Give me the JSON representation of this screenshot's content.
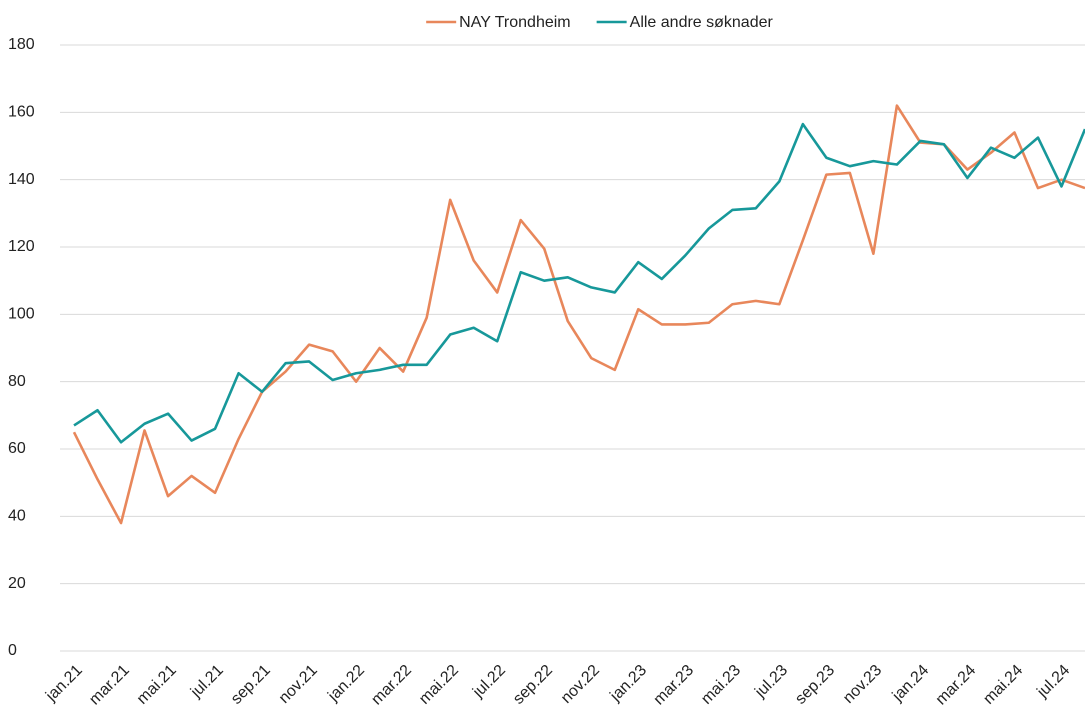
{
  "chart_data": {
    "type": "line",
    "categories": [
      "jan.21",
      null,
      "mar.21",
      null,
      "mai.21",
      null,
      "jul.21",
      null,
      "sep.21",
      null,
      "nov.21",
      null,
      "jan.22",
      null,
      "mar.22",
      null,
      "mai.22",
      null,
      "jul.22",
      null,
      "sep.22",
      null,
      "nov.22",
      null,
      "jan.23",
      null,
      "mar.23",
      null,
      "mai.23",
      null,
      "jul.23",
      null,
      "sep.23",
      null,
      "nov.23",
      null,
      "jan.24",
      null,
      "mar.24",
      null,
      "mai.24",
      null,
      "jul.24",
      null
    ],
    "series": [
      {
        "name": "NAY Trondheim",
        "color": "#e8875b",
        "values": [
          65,
          51,
          38,
          65.5,
          46,
          52,
          47,
          63,
          77,
          83,
          91,
          89,
          80,
          90,
          83,
          99,
          134,
          116,
          106.5,
          128,
          119.5,
          98,
          87,
          83.5,
          101.5,
          97,
          97,
          97.5,
          103,
          104,
          103,
          122,
          141.5,
          142,
          118,
          162,
          151,
          150.5,
          143,
          148,
          154,
          137.5,
          140,
          137.5
        ]
      },
      {
        "name": "Alle andre søknader",
        "color": "#17989a",
        "values": [
          67,
          71.5,
          62,
          67.5,
          70.5,
          62.5,
          66,
          82.5,
          77,
          85.5,
          86,
          80.5,
          82.5,
          83.5,
          85,
          85,
          94,
          96,
          92,
          112.5,
          110,
          111,
          108,
          106.5,
          115.5,
          110.5,
          117.5,
          125.5,
          131,
          131.5,
          139.5,
          156.5,
          146.5,
          144,
          145.5,
          144.5,
          151.5,
          150.5,
          140.5,
          149.5,
          146.5,
          152.5,
          138,
          155
        ]
      }
    ],
    "ylim": [
      0,
      180
    ],
    "yticks": [
      0,
      20,
      40,
      60,
      80,
      100,
      120,
      140,
      160,
      180
    ],
    "grid": true,
    "legend": "top"
  }
}
